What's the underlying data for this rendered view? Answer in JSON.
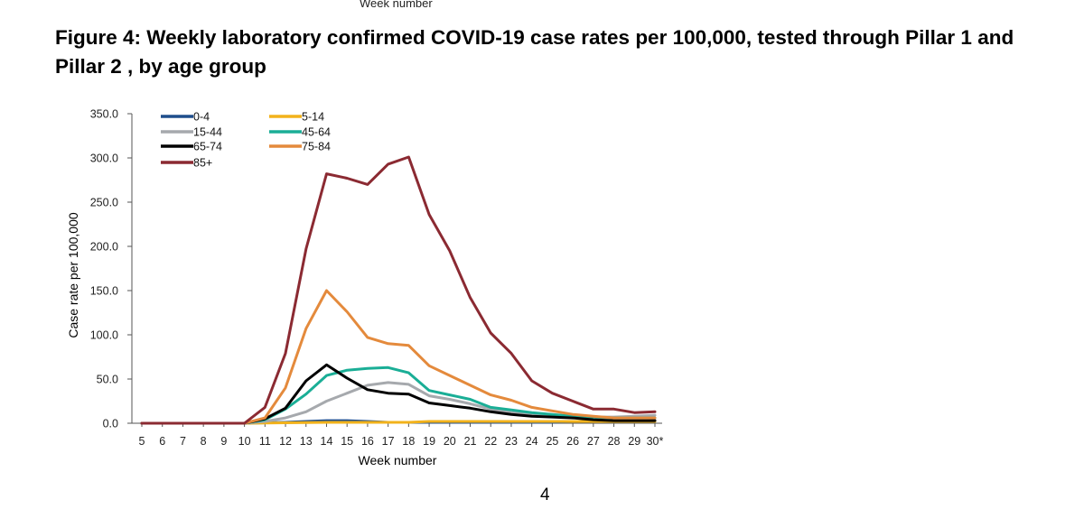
{
  "page": {
    "top_label": "Week number",
    "title": "Figure 4: Weekly laboratory confirmed COVID-19 case rates per 100,000, tested through Pillar 1 and Pillar 2 , by age group",
    "page_number": "4"
  },
  "chart_data": {
    "type": "line",
    "xlabel": "Week number",
    "ylabel": "Case rate per 100,000",
    "ylim": [
      0,
      350
    ],
    "yticks": [
      "0.0",
      "50.0",
      "100.0",
      "150.0",
      "200.0",
      "250.0",
      "300.0",
      "350.0"
    ],
    "categories": [
      "5",
      "6",
      "7",
      "8",
      "9",
      "10",
      "11",
      "12",
      "13",
      "14",
      "15",
      "16",
      "17",
      "18",
      "19",
      "20",
      "21",
      "22",
      "23",
      "24",
      "25",
      "26",
      "27",
      "28",
      "29",
      "30*"
    ],
    "grid": false,
    "legend_position": "top-left",
    "series": [
      {
        "name": "0-4",
        "color": "#1f4e8c",
        "values": [
          0,
          0,
          0,
          0,
          0,
          0,
          0.5,
          1,
          2,
          3,
          3,
          2,
          1,
          1,
          1,
          1,
          1,
          1,
          1,
          1,
          1,
          2,
          2,
          2,
          2,
          3
        ]
      },
      {
        "name": "5-14",
        "color": "#f2b21b",
        "values": [
          0,
          0,
          0,
          0,
          0,
          0,
          0.3,
          0.5,
          0.8,
          1,
          1,
          1,
          1,
          1,
          2,
          2,
          2,
          2,
          2,
          2,
          2,
          2,
          2,
          2,
          2,
          2
        ]
      },
      {
        "name": "15-44",
        "color": "#a6a9ad",
        "values": [
          0,
          0,
          0,
          0,
          0,
          0,
          2,
          6,
          13,
          25,
          34,
          43,
          46,
          44,
          31,
          27,
          22,
          16,
          12,
          10,
          9,
          8,
          7,
          7,
          8,
          9
        ]
      },
      {
        "name": "45-64",
        "color": "#1aae96",
        "values": [
          0,
          0,
          0,
          0,
          0,
          0,
          4,
          16,
          33,
          54,
          60,
          62,
          63,
          57,
          37,
          32,
          27,
          18,
          15,
          12,
          10,
          8,
          7,
          6,
          6,
          6
        ]
      },
      {
        "name": "65-74",
        "color": "#000000",
        "values": [
          0,
          0,
          0,
          0,
          0,
          0,
          5,
          17,
          48,
          66,
          51,
          38,
          34,
          33,
          23,
          20,
          17,
          13,
          10,
          8,
          7,
          6,
          4,
          3,
          3,
          3
        ]
      },
      {
        "name": "75-84",
        "color": "#e48a3c",
        "values": [
          0,
          0,
          0,
          0,
          0,
          0,
          6,
          40,
          107,
          150,
          126,
          97,
          90,
          88,
          65,
          54,
          43,
          32,
          26,
          18,
          14,
          10,
          8,
          6,
          6,
          6
        ]
      },
      {
        "name": "85+",
        "color": "#8b2a32",
        "values": [
          0,
          0,
          0,
          0,
          0,
          0,
          18,
          79,
          197,
          282,
          277,
          270,
          293,
          301,
          236,
          195,
          142,
          102,
          79,
          48,
          34,
          25,
          16,
          16,
          12,
          13
        ]
      }
    ]
  }
}
